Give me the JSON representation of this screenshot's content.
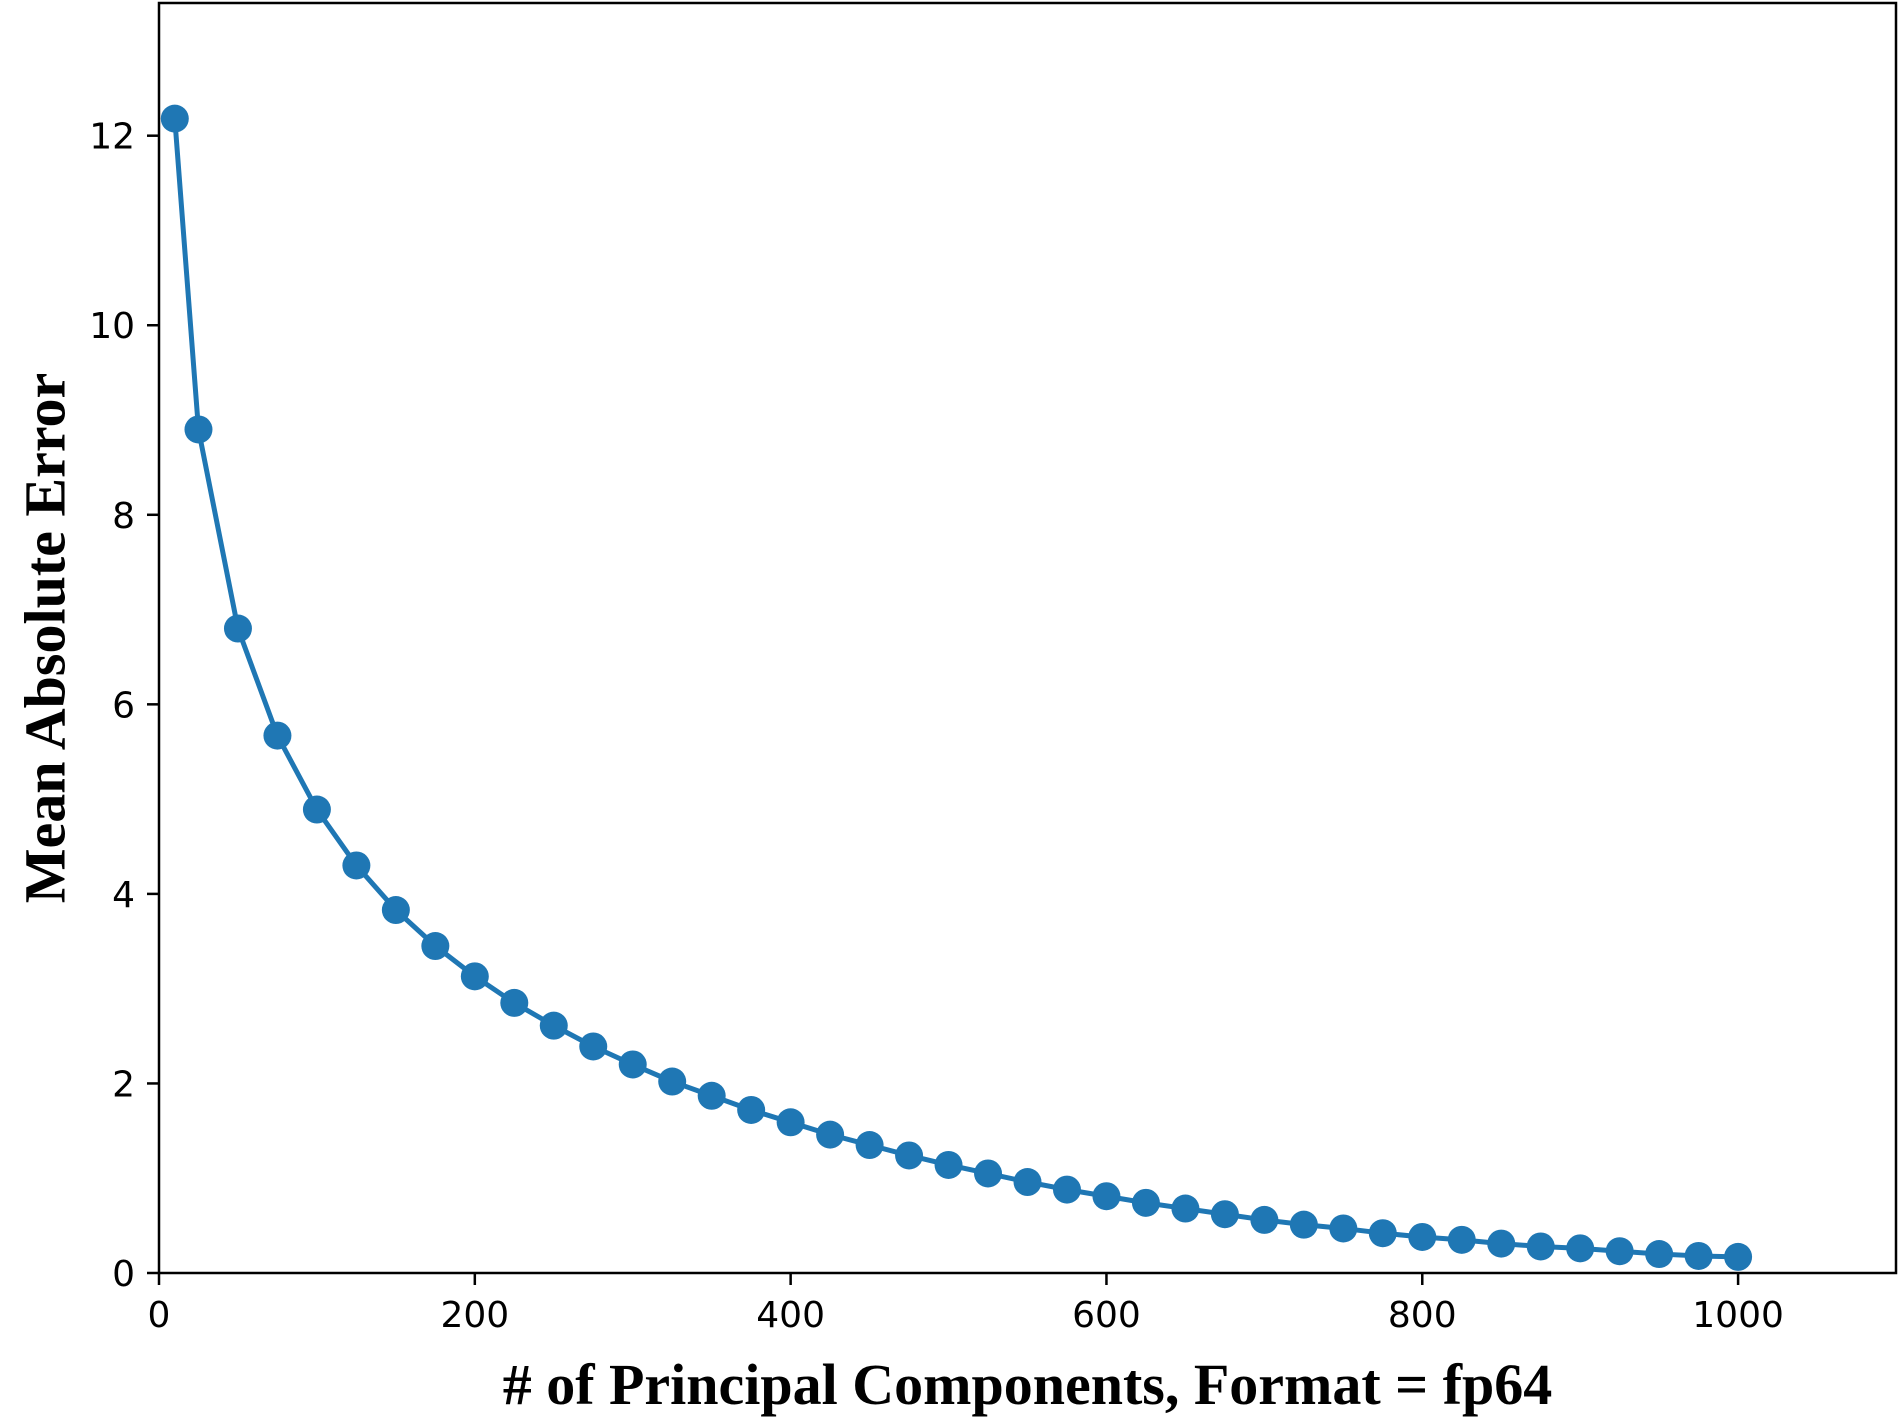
{
  "colors": {
    "series": "#1f77b4",
    "axis": "#000000",
    "background": "#ffffff"
  },
  "chart_data": {
    "type": "line",
    "title": "",
    "xlabel": "# of Principal Components, Format = fp64",
    "ylabel": "Mean Absolute Error",
    "xlim": [
      0,
      1100
    ],
    "ylim": [
      0,
      13.4
    ],
    "grid": false,
    "x_ticks": [
      0,
      200,
      400,
      600,
      800,
      1000
    ],
    "y_ticks": [
      0,
      2,
      4,
      6,
      8,
      10,
      12
    ],
    "x_tick_labels": [
      "0",
      "200",
      "400",
      "600",
      "800",
      "1000"
    ],
    "y_tick_labels": [
      "0",
      "2",
      "4",
      "6",
      "8",
      "10",
      "12"
    ],
    "series": [
      {
        "marker": "circle",
        "x": [
          10,
          25,
          50,
          75,
          100,
          125,
          150,
          175,
          200,
          225,
          250,
          275,
          300,
          325,
          350,
          375,
          400,
          425,
          450,
          475,
          500,
          525,
          550,
          575,
          600,
          625,
          650,
          675,
          700,
          725,
          750,
          775,
          800,
          825,
          850,
          875,
          900,
          925,
          950,
          975,
          1000
        ],
        "y": [
          12.18,
          8.9,
          6.8,
          5.67,
          4.89,
          4.3,
          3.83,
          3.45,
          3.13,
          2.85,
          2.61,
          2.39,
          2.2,
          2.02,
          1.87,
          1.72,
          1.59,
          1.46,
          1.35,
          1.24,
          1.14,
          1.05,
          0.96,
          0.88,
          0.81,
          0.74,
          0.68,
          0.62,
          0.56,
          0.51,
          0.47,
          0.42,
          0.38,
          0.35,
          0.31,
          0.28,
          0.26,
          0.23,
          0.2,
          0.18,
          0.17
        ]
      }
    ]
  }
}
